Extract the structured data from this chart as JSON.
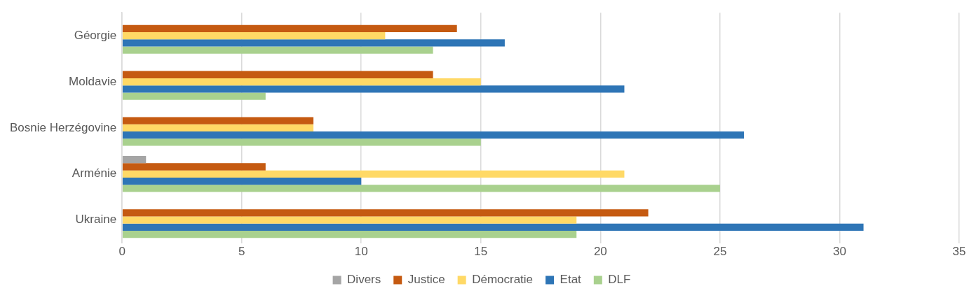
{
  "chart_data": {
    "type": "bar",
    "orientation": "horizontal",
    "categories": [
      "Géorgie",
      "Moldavie",
      "Bosnie Herzégovine",
      "Arménie",
      "Ukraine"
    ],
    "series": [
      {
        "name": "Divers",
        "color": "#a5a5a5",
        "values": [
          null,
          null,
          null,
          1,
          null
        ]
      },
      {
        "name": "Justice",
        "color": "#c55a11",
        "values": [
          14,
          13,
          8,
          6,
          22
        ]
      },
      {
        "name": "Démocratie",
        "color": "#ffd966",
        "values": [
          11,
          15,
          8,
          21,
          19
        ]
      },
      {
        "name": "Etat",
        "color": "#2e75b6",
        "values": [
          16,
          21,
          26,
          10,
          31
        ]
      },
      {
        "name": "DLF",
        "color": "#a9d18e",
        "values": [
          13,
          6,
          15,
          25,
          19
        ]
      }
    ],
    "xlim": [
      0,
      35
    ],
    "xticks": [
      0,
      5,
      10,
      15,
      20,
      25,
      30,
      35
    ],
    "grid": "x",
    "legend": "bottom"
  }
}
